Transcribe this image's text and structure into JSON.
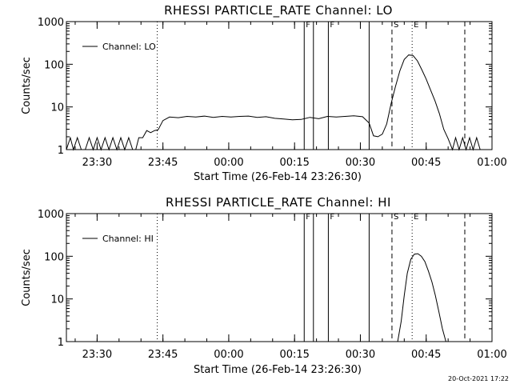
{
  "footer": {
    "timestamp": "20-Oct-2021 17:22"
  },
  "colors": {
    "line": "#000000",
    "background": "#ffffff"
  },
  "chart_data": [
    {
      "type": "line",
      "title": "RHESSI PARTICLE_RATE Channel: LO",
      "xlabel": "Start Time (26-Feb-14 23:26:30)",
      "ylabel": "Counts/sec",
      "yscale": "log",
      "ylim": [
        1,
        1000
      ],
      "xlim_minutes": [
        -3.5,
        93.5
      ],
      "x_tick_minutes": [
        3.5,
        18.5,
        33.5,
        48.5,
        63.5,
        78.5,
        93.5
      ],
      "x_tick_labels": [
        "23:30",
        "23:45",
        "00:00",
        "00:15",
        "00:30",
        "00:45",
        "01:00"
      ],
      "y_tick_values": [
        1,
        10,
        100,
        1000
      ],
      "y_tick_labels": [
        "1",
        "10",
        "100",
        "1000"
      ],
      "legend": {
        "label": "Channel: LO",
        "position": "top-left"
      },
      "vlines": [
        {
          "minute": 17.2,
          "style": "dotted"
        },
        {
          "minute": 50.7,
          "style": "solid"
        },
        {
          "minute": 52.8,
          "style": "solid"
        },
        {
          "minute": 56.2,
          "style": "solid"
        },
        {
          "minute": 65.5,
          "style": "solid"
        },
        {
          "minute": 70.7,
          "style": "dashed"
        },
        {
          "minute": 75.3,
          "style": "dotted"
        },
        {
          "minute": 87.3,
          "style": "dashed"
        },
        {
          "minute": 94.5,
          "style": "dotted"
        }
      ],
      "markers": [
        {
          "minute": 50.7,
          "label": "F"
        },
        {
          "minute": 56.2,
          "label": "F"
        },
        {
          "minute": 70.7,
          "label": "S"
        },
        {
          "minute": 75.3,
          "label": "E"
        }
      ],
      "series": [
        {
          "name": "Channel: LO",
          "x": [
            -3.5,
            -2.6,
            -1.9,
            -1.0,
            -0.1,
            0.8,
            1.7,
            2.6,
            3.5,
            4.4,
            5.3,
            6.2,
            7.1,
            8.0,
            8.9,
            9.8,
            10.7,
            11.6,
            12.3,
            13.0,
            13.9,
            14.8,
            15.7,
            16.6,
            17.4,
            18.5,
            20,
            22,
            24,
            26,
            28,
            30,
            32,
            34,
            36,
            38,
            40,
            42,
            44,
            46,
            48,
            50,
            52,
            54,
            56,
            58,
            60,
            62,
            64,
            65.5,
            66.5,
            67.5,
            68.5,
            69.5,
            70.5,
            71.5,
            72.5,
            73.5,
            74.5,
            75.5,
            76.5,
            77.5,
            78.5,
            79.5,
            80.5,
            81.5,
            82.5,
            83.5,
            84.5,
            85.2,
            86.0,
            86.8,
            87.6,
            88.4,
            89.2,
            90.0,
            90.8
          ],
          "y": [
            1,
            1.9,
            1,
            1.9,
            1,
            1,
            1.9,
            1,
            1.9,
            1,
            1.9,
            1,
            1.9,
            1,
            1.9,
            1,
            1.9,
            1,
            1,
            1.9,
            1.9,
            2.8,
            2.5,
            2.8,
            2.9,
            4.8,
            5.8,
            5.6,
            6.0,
            5.8,
            6.1,
            5.7,
            6.0,
            5.8,
            6.0,
            6.1,
            5.7,
            5.9,
            5.4,
            5.2,
            5.0,
            5.1,
            5.7,
            5.3,
            6.0,
            5.8,
            6.0,
            6.2,
            5.9,
            4.2,
            2.1,
            2.0,
            2.3,
            4.0,
            12,
            30,
            70,
            130,
            165,
            160,
            120,
            75,
            45,
            25,
            14,
            7,
            3,
            1.8,
            1,
            1.9,
            1,
            1.9,
            1,
            1.9,
            1,
            1.9,
            1
          ]
        }
      ]
    },
    {
      "type": "line",
      "title": "RHESSI PARTICLE_RATE Channel: HI",
      "xlabel": "Start Time (26-Feb-14 23:26:30)",
      "ylabel": "Counts/sec",
      "yscale": "log",
      "ylim": [
        1,
        1000
      ],
      "xlim_minutes": [
        -3.5,
        93.5
      ],
      "x_tick_minutes": [
        3.5,
        18.5,
        33.5,
        48.5,
        63.5,
        78.5,
        93.5
      ],
      "x_tick_labels": [
        "23:30",
        "23:45",
        "00:00",
        "00:15",
        "00:30",
        "00:45",
        "01:00"
      ],
      "y_tick_values": [
        1,
        10,
        100,
        1000
      ],
      "y_tick_labels": [
        "1",
        "10",
        "100",
        "1000"
      ],
      "legend": {
        "label": "Channel: HI",
        "position": "top-left"
      },
      "vlines": [
        {
          "minute": 17.2,
          "style": "dotted"
        },
        {
          "minute": 50.7,
          "style": "solid"
        },
        {
          "minute": 52.8,
          "style": "solid"
        },
        {
          "minute": 56.2,
          "style": "solid"
        },
        {
          "minute": 65.5,
          "style": "solid"
        },
        {
          "minute": 70.7,
          "style": "dashed"
        },
        {
          "minute": 75.3,
          "style": "dotted"
        },
        {
          "minute": 87.3,
          "style": "dashed"
        },
        {
          "minute": 94.5,
          "style": "dotted"
        }
      ],
      "markers": [
        {
          "minute": 50.7,
          "label": "F"
        },
        {
          "minute": 56.2,
          "label": "F"
        },
        {
          "minute": 70.7,
          "label": "S"
        },
        {
          "minute": 75.3,
          "label": "E"
        }
      ],
      "series": [
        {
          "name": "Channel: HI",
          "x": [
            72.0,
            72.8,
            73.5,
            74.2,
            75.0,
            75.8,
            76.6,
            77.4,
            78.2,
            79.0,
            79.8,
            80.6,
            81.4,
            82.2,
            83.0
          ],
          "y": [
            1,
            3,
            12,
            40,
            85,
            112,
            115,
            100,
            75,
            45,
            25,
            12,
            5,
            2,
            1
          ]
        }
      ]
    }
  ]
}
